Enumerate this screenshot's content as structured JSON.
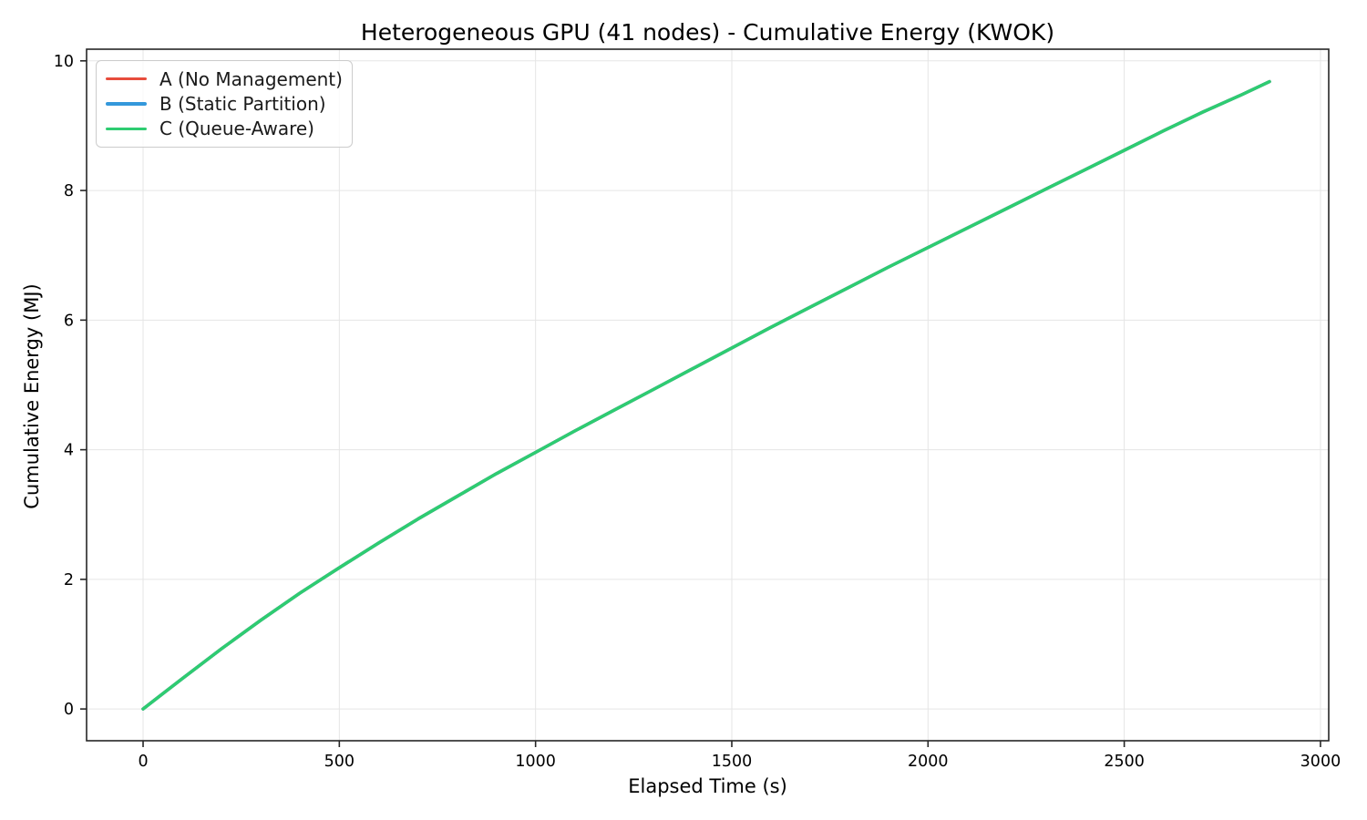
{
  "chart_data": {
    "type": "line",
    "title": "Heterogeneous GPU (41 nodes) - Cumulative Energy (KWOK)",
    "xlabel": "Elapsed Time (s)",
    "ylabel": "Cumulative Energy (MJ)",
    "xlim": [
      -144,
      3021
    ],
    "ylim": [
      -0.49,
      10.18
    ],
    "x_ticks": [
      0,
      500,
      1000,
      1500,
      2000,
      2500,
      3000
    ],
    "x_tick_labels": [
      "0",
      "500",
      "1000",
      "1500",
      "2000",
      "2500",
      "3000"
    ],
    "y_ticks": [
      0,
      2,
      4,
      6,
      8,
      10
    ],
    "y_tick_labels": [
      "0",
      "2",
      "4",
      "6",
      "8",
      "10"
    ],
    "grid": true,
    "grid_color": "#e5e5e5",
    "spine_color": "#262626",
    "background_color": "#ffffff",
    "legend_position": "upper-left",
    "x": [
      0,
      100,
      200,
      300,
      400,
      500,
      600,
      700,
      800,
      900,
      1000,
      1100,
      1200,
      1300,
      1400,
      1500,
      1600,
      1700,
      1800,
      1900,
      2000,
      2100,
      2200,
      2300,
      2400,
      2500,
      2600,
      2700,
      2800,
      2870
    ],
    "series": [
      {
        "name": "A (No Management)",
        "color": "#e74c3c",
        "values": [
          0,
          0.47,
          0.93,
          1.37,
          1.79,
          2.18,
          2.56,
          2.93,
          3.28,
          3.63,
          3.96,
          4.29,
          4.61,
          4.93,
          5.25,
          5.57,
          5.89,
          6.2,
          6.51,
          6.82,
          7.12,
          7.42,
          7.72,
          8.02,
          8.32,
          8.62,
          8.92,
          9.21,
          9.48,
          9.68
        ]
      },
      {
        "name": "B (Static Partition)",
        "color": "#3498db",
        "values": [
          0,
          0.47,
          0.93,
          1.37,
          1.79,
          2.18,
          2.56,
          2.93,
          3.28,
          3.63,
          3.96,
          4.29,
          4.61,
          4.93,
          5.25,
          5.57,
          5.89,
          6.2,
          6.51,
          6.82,
          7.12,
          7.42,
          7.72,
          8.02,
          8.32,
          8.62,
          8.92,
          9.21,
          9.48,
          9.68
        ]
      },
      {
        "name": "C (Queue-Aware)",
        "color": "#2ecc71",
        "values": [
          0,
          0.47,
          0.93,
          1.37,
          1.79,
          2.18,
          2.56,
          2.93,
          3.28,
          3.63,
          3.96,
          4.29,
          4.61,
          4.93,
          5.25,
          5.57,
          5.89,
          6.2,
          6.51,
          6.82,
          7.12,
          7.42,
          7.72,
          8.02,
          8.32,
          8.62,
          8.92,
          9.21,
          9.48,
          9.68
        ]
      }
    ]
  }
}
